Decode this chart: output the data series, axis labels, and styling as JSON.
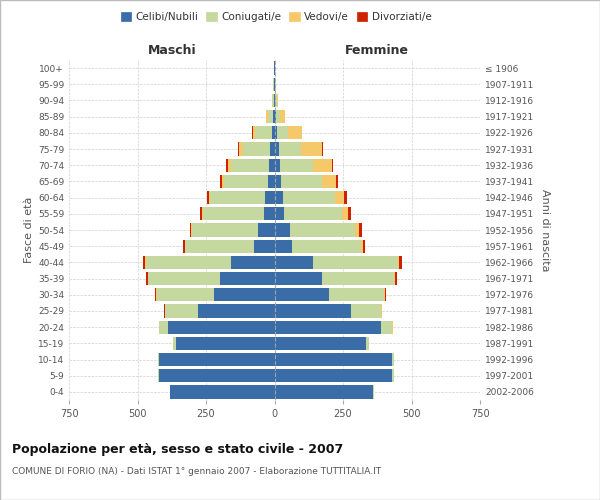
{
  "age_groups": [
    "0-4",
    "5-9",
    "10-14",
    "15-19",
    "20-24",
    "25-29",
    "30-34",
    "35-39",
    "40-44",
    "45-49",
    "50-54",
    "55-59",
    "60-64",
    "65-69",
    "70-74",
    "75-79",
    "80-84",
    "85-89",
    "90-94",
    "95-99",
    "100+"
  ],
  "birth_years": [
    "2002-2006",
    "1997-2001",
    "1992-1996",
    "1987-1991",
    "1982-1986",
    "1977-1981",
    "1972-1976",
    "1967-1971",
    "1962-1966",
    "1957-1961",
    "1952-1956",
    "1947-1951",
    "1942-1946",
    "1937-1941",
    "1932-1936",
    "1927-1931",
    "1922-1926",
    "1917-1921",
    "1912-1916",
    "1907-1911",
    "≤ 1906"
  ],
  "males": {
    "celibi": [
      380,
      420,
      420,
      360,
      390,
      280,
      220,
      200,
      160,
      75,
      60,
      40,
      35,
      25,
      20,
      15,
      10,
      5,
      3,
      2,
      2
    ],
    "coniugati": [
      3,
      5,
      5,
      10,
      30,
      120,
      210,
      260,
      310,
      250,
      240,
      220,
      200,
      160,
      140,
      100,
      60,
      20,
      5,
      2,
      1
    ],
    "vedovi": [
      0,
      0,
      0,
      0,
      1,
      1,
      2,
      2,
      2,
      2,
      3,
      5,
      5,
      8,
      10,
      15,
      10,
      5,
      2,
      0,
      0
    ],
    "divorziati": [
      0,
      0,
      0,
      0,
      1,
      3,
      5,
      8,
      8,
      8,
      5,
      8,
      8,
      5,
      8,
      5,
      2,
      0,
      0,
      0,
      0
    ]
  },
  "females": {
    "nubili": [
      360,
      430,
      430,
      335,
      390,
      280,
      200,
      175,
      140,
      65,
      55,
      35,
      30,
      25,
      20,
      15,
      10,
      5,
      3,
      2,
      2
    ],
    "coniugate": [
      3,
      5,
      5,
      10,
      40,
      110,
      200,
      260,
      310,
      250,
      240,
      210,
      190,
      150,
      120,
      80,
      40,
      15,
      5,
      3,
      1
    ],
    "vedove": [
      0,
      0,
      0,
      0,
      1,
      2,
      2,
      3,
      5,
      8,
      15,
      25,
      35,
      50,
      70,
      80,
      50,
      20,
      5,
      2,
      0
    ],
    "divorziate": [
      0,
      0,
      0,
      0,
      1,
      2,
      5,
      8,
      12,
      8,
      8,
      8,
      8,
      5,
      5,
      3,
      2,
      0,
      0,
      0,
      0
    ]
  },
  "colors": {
    "celibi_nubili": "#3a6ca8",
    "coniugati": "#c5d8a0",
    "vedovi": "#f5c96a",
    "divorziati": "#cc2200"
  },
  "xlim": 750,
  "title": "Popolazione per età, sesso e stato civile - 2007",
  "subtitle": "COMUNE DI FORIO (NA) - Dati ISTAT 1° gennaio 2007 - Elaborazione TUTTITALIA.IT",
  "ylabel_left": "Fasce di età",
  "ylabel_right": "Anni di nascita",
  "xlabel_maschi": "Maschi",
  "xlabel_femmine": "Femmine",
  "legend_labels": [
    "Celibi/Nubili",
    "Coniugati/e",
    "Vedovi/e",
    "Divorziati/e"
  ],
  "bg_color": "#ffffff",
  "grid_color": "#cccccc"
}
